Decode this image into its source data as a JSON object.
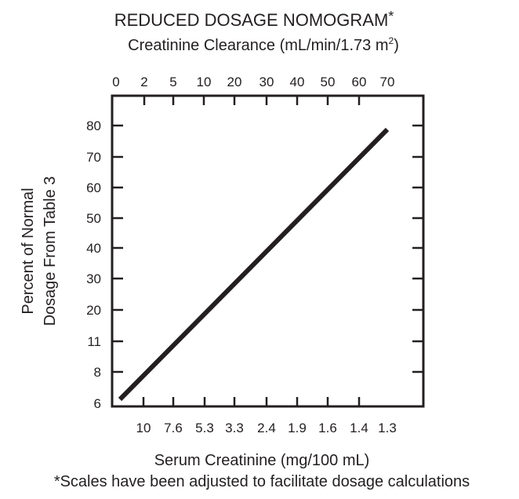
{
  "chart_data": {
    "type": "line",
    "title": "REDUCED DOSAGE NOMOGRAM",
    "title_marker": "*",
    "top_axis_label": "Creatinine Clearance (mL/min/1.73 m",
    "top_axis_label_sup": "2",
    "top_axis_label_end": ")",
    "top_ticks": [
      "0",
      "2",
      "5",
      "10",
      "20",
      "30",
      "40",
      "50",
      "60",
      "70"
    ],
    "left_ticks": [
      "80",
      "70",
      "60",
      "50",
      "40",
      "30",
      "20",
      "11",
      "8",
      "6"
    ],
    "bottom_ticks": [
      "10",
      "7.6",
      "5.3",
      "3.3",
      "2.4",
      "1.9",
      "1.6",
      "1.4",
      "1.3"
    ],
    "ylabel_line1": "Percent of Normal",
    "ylabel_line2": "Dosage From Table 3",
    "xlabel": "Serum Creatinine (mg/100 mL)",
    "footnote": "*Scales have been adjusted to facilitate dosage calculations",
    "series": [
      {
        "x": [
          0,
          70
        ],
        "y": [
          6,
          80
        ]
      }
    ],
    "grid": false,
    "line_color": "#231f20"
  }
}
